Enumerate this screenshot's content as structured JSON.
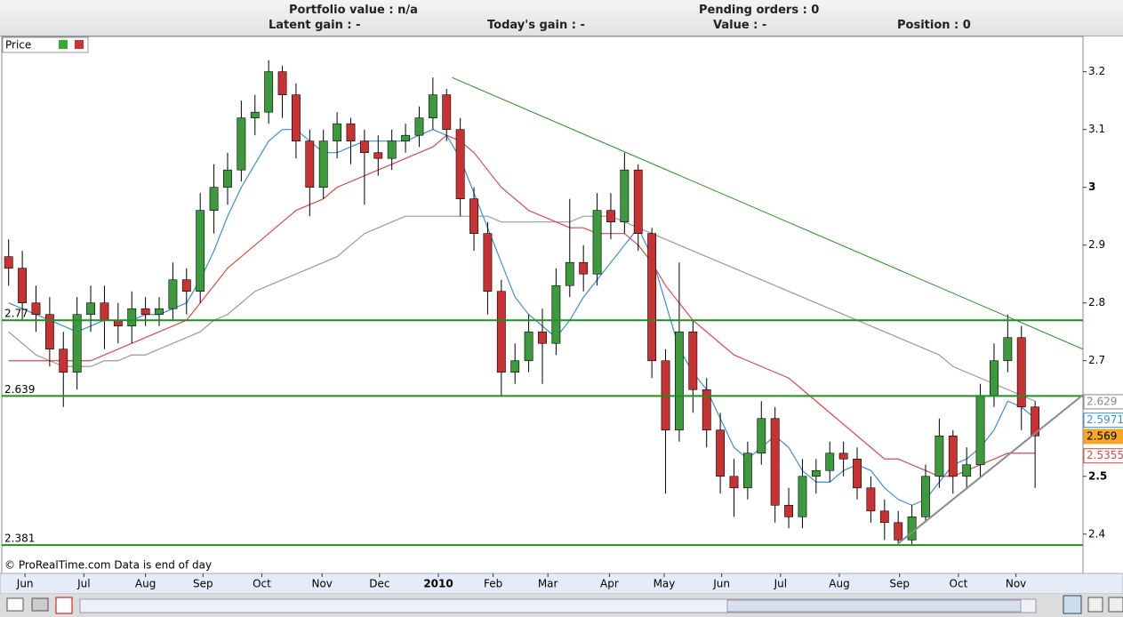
{
  "header": {
    "portfolio_value": "Portfolio value : n/a",
    "pending_orders": "Pending orders : 0",
    "latent_gain": "Latent gain : -",
    "todays_gain": "Today's gain : -",
    "value": "Value : -",
    "position": "Position : 0"
  },
  "chart_data": {
    "type": "candlestick",
    "panel_label": "Price",
    "footer": "© ProRealTime.com Data is end of day",
    "x": [
      0,
      1,
      2,
      3,
      4,
      5,
      6,
      7,
      8,
      9,
      10,
      11,
      12,
      13,
      14,
      15,
      16,
      17,
      18,
      19,
      20,
      21,
      22,
      23,
      24,
      25,
      26,
      27,
      28,
      29,
      30,
      31,
      32,
      33,
      34,
      35,
      36,
      37,
      38,
      39,
      40,
      41,
      42,
      43,
      44,
      45,
      46,
      47,
      48,
      49,
      50,
      51,
      52,
      53,
      54,
      55,
      56,
      57,
      58,
      59,
      60,
      61,
      62,
      63,
      64,
      65,
      66,
      67,
      68,
      69,
      70,
      71,
      72,
      73,
      74,
      75
    ],
    "open": [
      2.88,
      2.86,
      2.8,
      2.78,
      2.72,
      2.68,
      2.78,
      2.8,
      2.77,
      2.76,
      2.79,
      2.78,
      2.79,
      2.84,
      2.82,
      2.96,
      3.0,
      3.03,
      3.12,
      3.13,
      3.2,
      3.16,
      3.08,
      3.0,
      3.08,
      3.11,
      3.08,
      3.06,
      3.05,
      3.08,
      3.09,
      3.12,
      3.16,
      3.1,
      2.98,
      2.92,
      2.82,
      2.68,
      2.7,
      2.75,
      2.73,
      2.83,
      2.87,
      2.85,
      2.96,
      2.94,
      3.03,
      2.92,
      2.7,
      2.58,
      2.75,
      2.65,
      2.58,
      2.5,
      2.48,
      2.54,
      2.6,
      2.45,
      2.43,
      2.5,
      2.51,
      2.54,
      2.53,
      2.48,
      2.44,
      2.42,
      2.39,
      2.43,
      2.5,
      2.57,
      2.5,
      2.52,
      2.64,
      2.7,
      2.74,
      2.62
    ],
    "high": [
      2.91,
      2.89,
      2.83,
      2.81,
      2.75,
      2.81,
      2.83,
      2.83,
      2.8,
      2.82,
      2.81,
      2.81,
      2.87,
      2.86,
      2.99,
      3.04,
      3.06,
      3.15,
      3.16,
      3.22,
      3.21,
      3.18,
      3.1,
      3.1,
      3.13,
      3.12,
      3.1,
      3.09,
      3.1,
      3.11,
      3.14,
      3.19,
      3.17,
      3.12,
      3.0,
      2.94,
      2.84,
      2.73,
      2.78,
      2.79,
      2.86,
      2.98,
      2.9,
      2.99,
      2.99,
      3.06,
      3.04,
      2.93,
      2.72,
      2.87,
      2.77,
      2.67,
      2.61,
      2.53,
      2.56,
      2.63,
      2.62,
      2.48,
      2.53,
      2.53,
      2.56,
      2.56,
      2.55,
      2.5,
      2.46,
      2.44,
      2.45,
      2.52,
      2.6,
      2.58,
      2.55,
      2.66,
      2.73,
      2.78,
      2.76,
      2.63
    ],
    "low": [
      2.83,
      2.77,
      2.75,
      2.69,
      2.62,
      2.65,
      2.75,
      2.72,
      2.73,
      2.73,
      2.76,
      2.76,
      2.77,
      2.78,
      2.8,
      2.92,
      2.97,
      3.01,
      3.09,
      3.11,
      3.12,
      3.05,
      2.95,
      2.98,
      3.05,
      3.04,
      2.97,
      3.02,
      3.03,
      3.06,
      3.07,
      3.1,
      3.08,
      2.95,
      2.89,
      2.78,
      2.64,
      2.66,
      2.68,
      2.66,
      2.71,
      2.81,
      2.82,
      2.83,
      2.91,
      2.92,
      2.89,
      2.67,
      2.47,
      2.56,
      2.61,
      2.55,
      2.47,
      2.43,
      2.46,
      2.52,
      2.42,
      2.41,
      2.41,
      2.47,
      2.49,
      2.5,
      2.46,
      2.42,
      2.39,
      2.38,
      2.38,
      2.42,
      2.48,
      2.47,
      2.48,
      2.5,
      2.62,
      2.68,
      2.58,
      2.48
    ],
    "close": [
      2.86,
      2.8,
      2.78,
      2.72,
      2.68,
      2.78,
      2.8,
      2.77,
      2.76,
      2.79,
      2.78,
      2.79,
      2.84,
      2.82,
      2.96,
      3.0,
      3.03,
      3.12,
      3.13,
      3.2,
      3.16,
      3.08,
      3.0,
      3.08,
      3.11,
      3.08,
      3.06,
      3.05,
      3.08,
      3.09,
      3.12,
      3.16,
      3.1,
      2.98,
      2.92,
      2.82,
      2.68,
      2.7,
      2.75,
      2.73,
      2.83,
      2.87,
      2.85,
      2.96,
      2.94,
      3.03,
      2.92,
      2.7,
      2.58,
      2.75,
      2.65,
      2.58,
      2.5,
      2.48,
      2.54,
      2.6,
      2.45,
      2.43,
      2.5,
      2.51,
      2.54,
      2.53,
      2.48,
      2.44,
      2.42,
      2.39,
      2.43,
      2.5,
      2.57,
      2.5,
      2.52,
      2.64,
      2.7,
      2.74,
      2.62,
      2.57
    ],
    "up_color": "#3c9a3c",
    "down_color": "#c83232",
    "series": [
      {
        "color": "#999999",
        "values": [
          2.75,
          2.73,
          2.71,
          2.7,
          2.69,
          2.69,
          2.69,
          2.7,
          2.7,
          2.71,
          2.71,
          2.72,
          2.73,
          2.74,
          2.75,
          2.77,
          2.78,
          2.8,
          2.82,
          2.83,
          2.84,
          2.85,
          2.86,
          2.87,
          2.88,
          2.9,
          2.92,
          2.93,
          2.94,
          2.95,
          2.95,
          2.95,
          2.95,
          2.95,
          2.95,
          2.95,
          2.94,
          2.94,
          2.94,
          2.94,
          2.94,
          2.94,
          2.95,
          2.95,
          2.95,
          2.94,
          2.93,
          2.92,
          2.91,
          2.9,
          2.89,
          2.88,
          2.87,
          2.86,
          2.85,
          2.84,
          2.83,
          2.82,
          2.81,
          2.8,
          2.79,
          2.78,
          2.77,
          2.76,
          2.75,
          2.74,
          2.73,
          2.72,
          2.71,
          2.69,
          2.68,
          2.67,
          2.66,
          2.65,
          2.64,
          2.63
        ]
      },
      {
        "color": "#d94a4a",
        "values": [
          2.7,
          2.7,
          2.7,
          2.7,
          2.7,
          2.7,
          2.7,
          2.71,
          2.72,
          2.73,
          2.74,
          2.75,
          2.76,
          2.77,
          2.8,
          2.83,
          2.86,
          2.88,
          2.9,
          2.92,
          2.94,
          2.96,
          2.97,
          2.98,
          3.0,
          3.01,
          3.02,
          3.03,
          3.04,
          3.05,
          3.06,
          3.07,
          3.09,
          3.08,
          3.06,
          3.03,
          3.0,
          2.98,
          2.96,
          2.95,
          2.94,
          2.93,
          2.93,
          2.92,
          2.92,
          2.92,
          2.9,
          2.87,
          2.83,
          2.8,
          2.77,
          2.75,
          2.73,
          2.71,
          2.7,
          2.69,
          2.68,
          2.67,
          2.65,
          2.63,
          2.61,
          2.59,
          2.57,
          2.55,
          2.53,
          2.53,
          2.52,
          2.51,
          2.5,
          2.5,
          2.51,
          2.52,
          2.53,
          2.54,
          2.54,
          2.54
        ]
      },
      {
        "color": "#3a8fd8",
        "values": [
          2.8,
          2.79,
          2.78,
          2.77,
          2.76,
          2.75,
          2.76,
          2.77,
          2.77,
          2.77,
          2.78,
          2.78,
          2.79,
          2.8,
          2.84,
          2.89,
          2.95,
          3.0,
          3.04,
          3.08,
          3.1,
          3.1,
          3.08,
          3.06,
          3.06,
          3.07,
          3.08,
          3.08,
          3.08,
          3.08,
          3.09,
          3.1,
          3.09,
          3.05,
          2.99,
          2.93,
          2.87,
          2.81,
          2.78,
          2.76,
          2.74,
          2.77,
          2.81,
          2.84,
          2.87,
          2.9,
          2.93,
          2.88,
          2.8,
          2.72,
          2.68,
          2.65,
          2.6,
          2.55,
          2.53,
          2.55,
          2.57,
          2.55,
          2.51,
          2.49,
          2.49,
          2.51,
          2.52,
          2.51,
          2.48,
          2.46,
          2.45,
          2.46,
          2.49,
          2.52,
          2.53,
          2.55,
          2.58,
          2.63,
          2.62,
          2.6
        ]
      }
    ],
    "hlines": [
      2.77,
      2.639,
      2.381
    ],
    "hline_color": "#1f8f1f",
    "trendlines": [
      {
        "x": [
          32.4,
          78.5
        ],
        "y": [
          3.19,
          2.72
        ],
        "color": "#1f8f1f"
      },
      {
        "x": [
          64.95,
          78.5
        ],
        "y": [
          2.383,
          2.641
        ],
        "color": "#8a8a8a"
      }
    ],
    "value_tags": [
      {
        "value": 2.629,
        "color": "#888888",
        "bg": "#ffffff"
      },
      {
        "value": 2.5971,
        "color": "#3a8fd8",
        "bg": "#ffffff"
      },
      {
        "value": 2.569,
        "color": "#000000",
        "bg": "#f5a623"
      },
      {
        "value": 2.5355,
        "color": "#d94a4a",
        "bg": "#ffffff"
      }
    ],
    "xlim": [
      -0.5,
      78.5
    ],
    "ylim": [
      2.332,
      3.261
    ],
    "yticks": [
      3.2,
      3.1,
      3,
      2.9,
      2.8,
      2.7,
      2.5,
      2.4
    ],
    "xticks": [
      {
        "value": 1.2,
        "label": "Jun"
      },
      {
        "value": 5.5,
        "label": "Jul"
      },
      {
        "value": 10,
        "label": "Aug"
      },
      {
        "value": 14.2,
        "label": "Sep"
      },
      {
        "value": 18.5,
        "label": "Oct"
      },
      {
        "value": 22.9,
        "label": "Nov"
      },
      {
        "value": 27.1,
        "label": "Dec"
      },
      {
        "value": 31.4,
        "label": "2010"
      },
      {
        "value": 35.4,
        "label": "Feb"
      },
      {
        "value": 39.4,
        "label": "Mar"
      },
      {
        "value": 43.9,
        "label": "Apr"
      },
      {
        "value": 47.9,
        "label": "May"
      },
      {
        "value": 52.1,
        "label": "Jun"
      },
      {
        "value": 56.4,
        "label": "Jul"
      },
      {
        "value": 60.7,
        "label": "Aug"
      },
      {
        "value": 65.1,
        "label": "Sep"
      },
      {
        "value": 69.4,
        "label": "Oct"
      },
      {
        "value": 73.6,
        "label": "Nov"
      }
    ]
  }
}
